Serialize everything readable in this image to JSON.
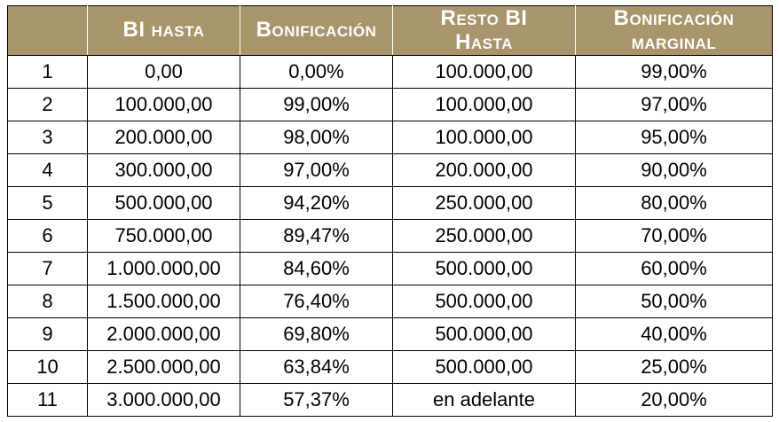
{
  "colors": {
    "header_bg": "#a8956b",
    "header_text": "#ffffff",
    "body_text": "#000000",
    "grid": "#000000"
  },
  "chart_data": {
    "type": "table",
    "title": "",
    "header_lines": [
      [
        "",
        ""
      ],
      [
        "BI hasta",
        ""
      ],
      [
        "Bonificación",
        ""
      ],
      [
        "Resto BI",
        "Hasta"
      ],
      [
        "Bonificación",
        "marginal"
      ]
    ],
    "columns": [
      "",
      "BI hasta",
      "Bonificación",
      "Resto BI Hasta",
      "Bonificación marginal"
    ],
    "rows": [
      [
        "1",
        "0,00",
        "0,00%",
        "100.000,00",
        "99,00%"
      ],
      [
        "2",
        "100.000,00",
        "99,00%",
        "100.000,00",
        "97,00%"
      ],
      [
        "3",
        "200.000,00",
        "98,00%",
        "100.000,00",
        "95,00%"
      ],
      [
        "4",
        "300.000,00",
        "97,00%",
        "200.000,00",
        "90,00%"
      ],
      [
        "5",
        "500.000,00",
        "94,20%",
        "250.000,00",
        "80,00%"
      ],
      [
        "6",
        "750.000,00",
        "89,47%",
        "250.000,00",
        "70,00%"
      ],
      [
        "7",
        "1.000.000,00",
        "84,60%",
        "500.000,00",
        "60,00%"
      ],
      [
        "8",
        "1.500.000,00",
        "76,40%",
        "500.000,00",
        "50,00%"
      ],
      [
        "9",
        "2.000.000,00",
        "69,80%",
        "500.000,00",
        "40,00%"
      ],
      [
        "10",
        "2.500.000,00",
        "63,84%",
        "500.000,00",
        "25,00%"
      ],
      [
        "11",
        "3.000.000,00",
        "57,37%",
        "en adelante",
        "20,00%"
      ]
    ]
  }
}
